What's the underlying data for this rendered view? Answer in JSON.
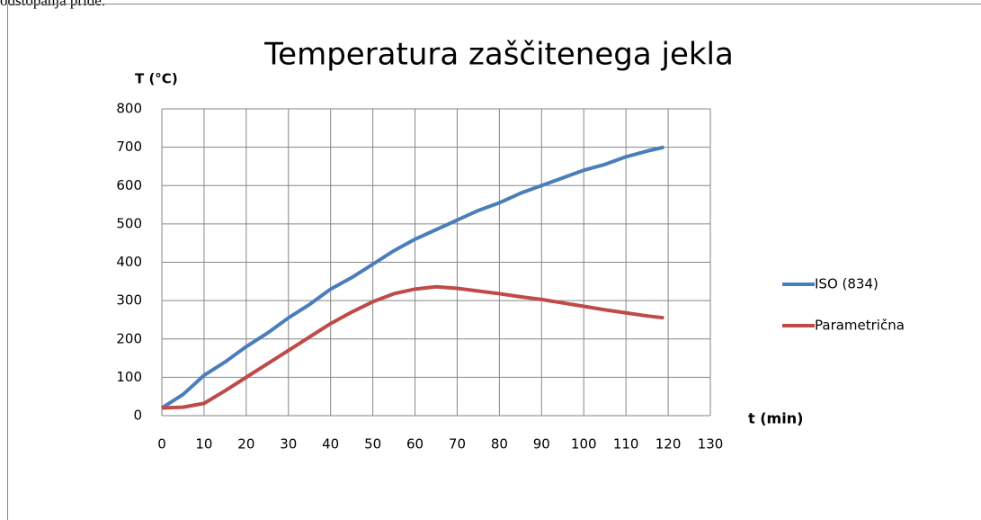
{
  "document_text": "odstopanja pride.",
  "chart_data": {
    "type": "line",
    "title": "Temperatura zaščitenega jekla",
    "y_label": "T (°C)",
    "x_label": "t (min)",
    "x": [
      0,
      5,
      10,
      15,
      20,
      25,
      30,
      35,
      40,
      45,
      50,
      55,
      60,
      65,
      70,
      75,
      80,
      85,
      90,
      95,
      100,
      105,
      110,
      115,
      119
    ],
    "series": [
      {
        "name": "ISO (834)",
        "color": "#4a7ebb",
        "values": [
          20,
          55,
          105,
          140,
          180,
          215,
          255,
          290,
          330,
          360,
          395,
          430,
          460,
          485,
          510,
          535,
          555,
          580,
          600,
          620,
          640,
          655,
          675,
          690,
          700
        ]
      },
      {
        "name": "Parametrična",
        "color": "#be4b48",
        "values": [
          20,
          22,
          32,
          65,
          100,
          135,
          170,
          205,
          240,
          270,
          297,
          318,
          330,
          336,
          332,
          325,
          318,
          310,
          303,
          294,
          285,
          276,
          268,
          260,
          255
        ]
      }
    ],
    "xlim": [
      0,
      130
    ],
    "xticks": [
      0,
      10,
      20,
      30,
      40,
      50,
      60,
      70,
      80,
      90,
      100,
      110,
      120,
      130
    ],
    "ylim": [
      0,
      800
    ],
    "yticks": [
      0,
      100,
      200,
      300,
      400,
      500,
      600,
      700,
      800
    ],
    "grid": true,
    "legend": "right"
  }
}
